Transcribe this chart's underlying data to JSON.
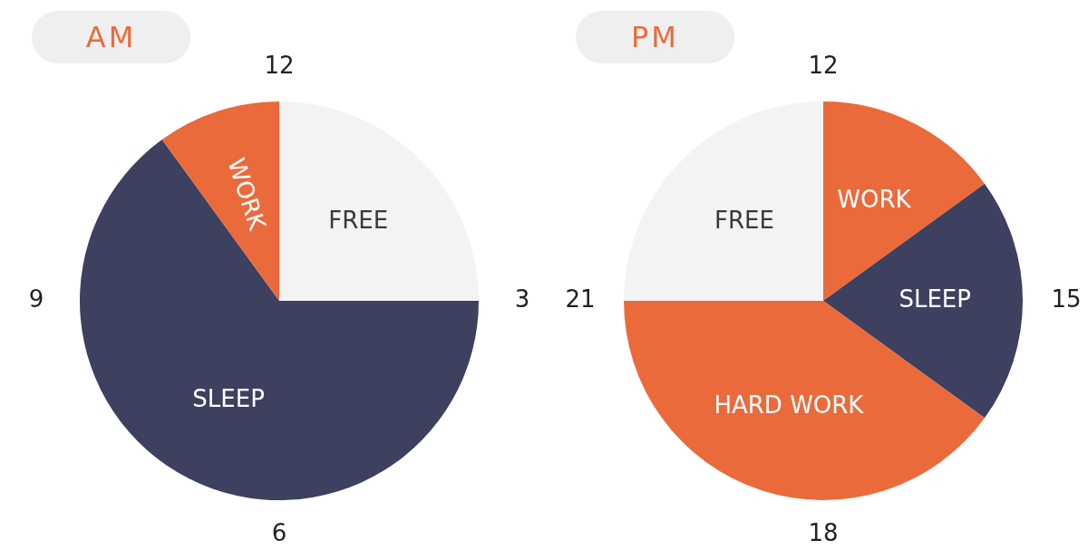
{
  "chart_data": [
    {
      "type": "pie",
      "title": "AM",
      "categories": [
        "FREE",
        "SLEEP",
        "WORK"
      ],
      "values": [
        25,
        65,
        10
      ],
      "colors": [
        "#f3f3f3",
        "#3d405e",
        "#eb6a3c"
      ],
      "annotations": [
        "12",
        "3",
        "6",
        "9"
      ]
    },
    {
      "type": "pie",
      "title": "PM",
      "categories": [
        "WORK",
        "SLEEP",
        "HARD WORK",
        "FREE"
      ],
      "values": [
        15,
        20,
        40,
        25
      ],
      "colors": [
        "#eb6a3c",
        "#3d405e",
        "#eb6a3c",
        "#f3f3f3"
      ],
      "annotations": [
        "12",
        "15",
        "18",
        "21"
      ]
    }
  ]
}
